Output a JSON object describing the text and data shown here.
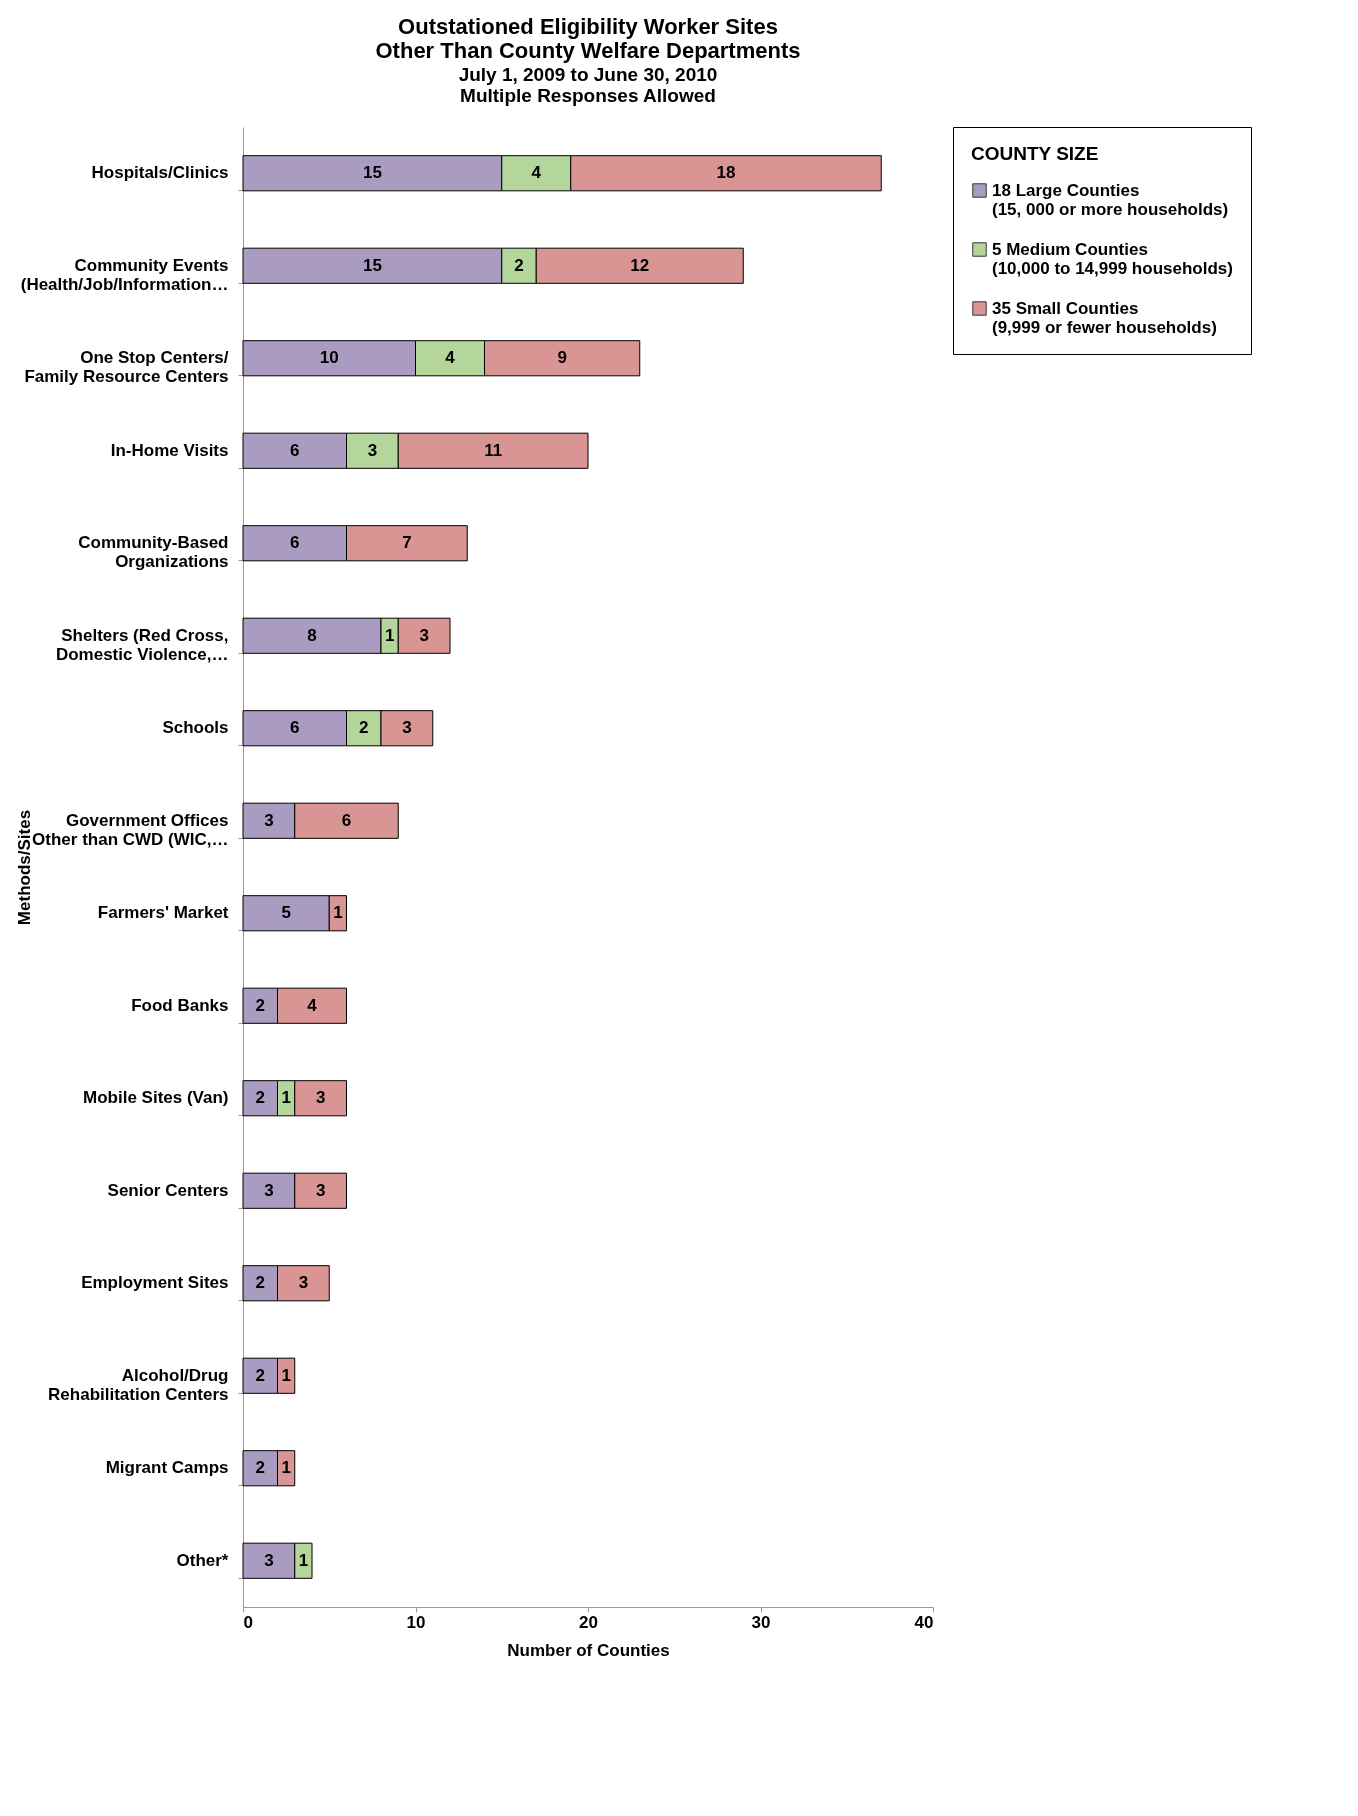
{
  "chart_data": {
    "type": "bar",
    "orientation": "horizontal",
    "stacked": true,
    "title": "Outstationed Eligibility Worker Sites Other Than County Welfare Departments",
    "subtitle": "July 1, 2009 to June 30, 2010",
    "annotations": [
      "Multiple Responses Allowed"
    ],
    "xlabel": "Number of Counties",
    "ylabel": "Methods/Sites",
    "legend_title": "COUNTY SIZE",
    "legend": "right",
    "data_labels": true,
    "grid": false,
    "xlim": [
      0,
      40
    ],
    "xticks": [
      0,
      10,
      20,
      30,
      40
    ],
    "categories": [
      "Hospitals/Clinics",
      "Community Events (Health/Job/Information…",
      "One Stop Centers/ Family Resource Centers",
      "In-Home Visits",
      "Community-Based Organizations",
      "Shelters (Red Cross, Domestic Violence,…",
      "Schools",
      "Government Offices Other than CWD (WIC,…",
      "Farmers' Market",
      "Food Banks",
      "Mobile Sites (Van)",
      "Senior Centers",
      "Employment Sites",
      "Alcohol/Drug Rehabilitation Centers",
      "Migrant Camps",
      "Other*"
    ],
    "series": [
      {
        "name": "18 Large Counties (15, 000 or more households)",
        "color": "#aa9cc1",
        "values": [
          15,
          15,
          10,
          6,
          6,
          8,
          6,
          3,
          5,
          2,
          2,
          3,
          2,
          2,
          2,
          3
        ]
      },
      {
        "name": "5 Medium Counties (10,000 to 14,999 households)",
        "color": "#b5d69b",
        "values": [
          4,
          2,
          4,
          3,
          null,
          1,
          2,
          null,
          null,
          null,
          1,
          null,
          null,
          null,
          null,
          1
        ]
      },
      {
        "name": "35 Small Counties (9,999 or fewer households)",
        "color": "#d99594",
        "values": [
          18,
          12,
          9,
          11,
          7,
          3,
          3,
          6,
          1,
          4,
          3,
          3,
          3,
          1,
          1,
          null
        ]
      }
    ]
  }
}
